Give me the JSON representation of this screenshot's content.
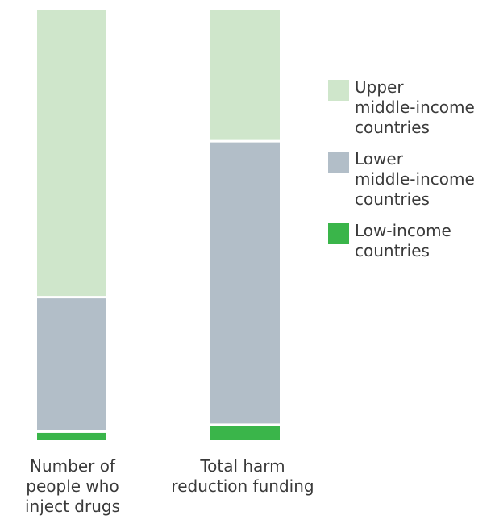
{
  "chart_data": {
    "type": "bar",
    "stacked": true,
    "normalized_percent": true,
    "categories": [
      "Number of\npeople who\ninject drugs",
      "Total harm\nreduction funding"
    ],
    "series": [
      {
        "name": "Low-income\ncountries",
        "values": [
          1.7,
          3.3
        ],
        "color": "#3ab54a"
      },
      {
        "name": "Lower\nmiddle-income\ncountries",
        "values": [
          31.3,
          66.0
        ],
        "color": "#b2bec8"
      },
      {
        "name": "Upper\nmiddle-income\ncountries",
        "values": [
          67.0,
          30.7
        ],
        "color": "#cfe6cb"
      }
    ],
    "legend_order": [
      2,
      1,
      0
    ],
    "title": "",
    "xlabel": "",
    "ylabel": "",
    "grid": false,
    "legend_position": "right"
  }
}
